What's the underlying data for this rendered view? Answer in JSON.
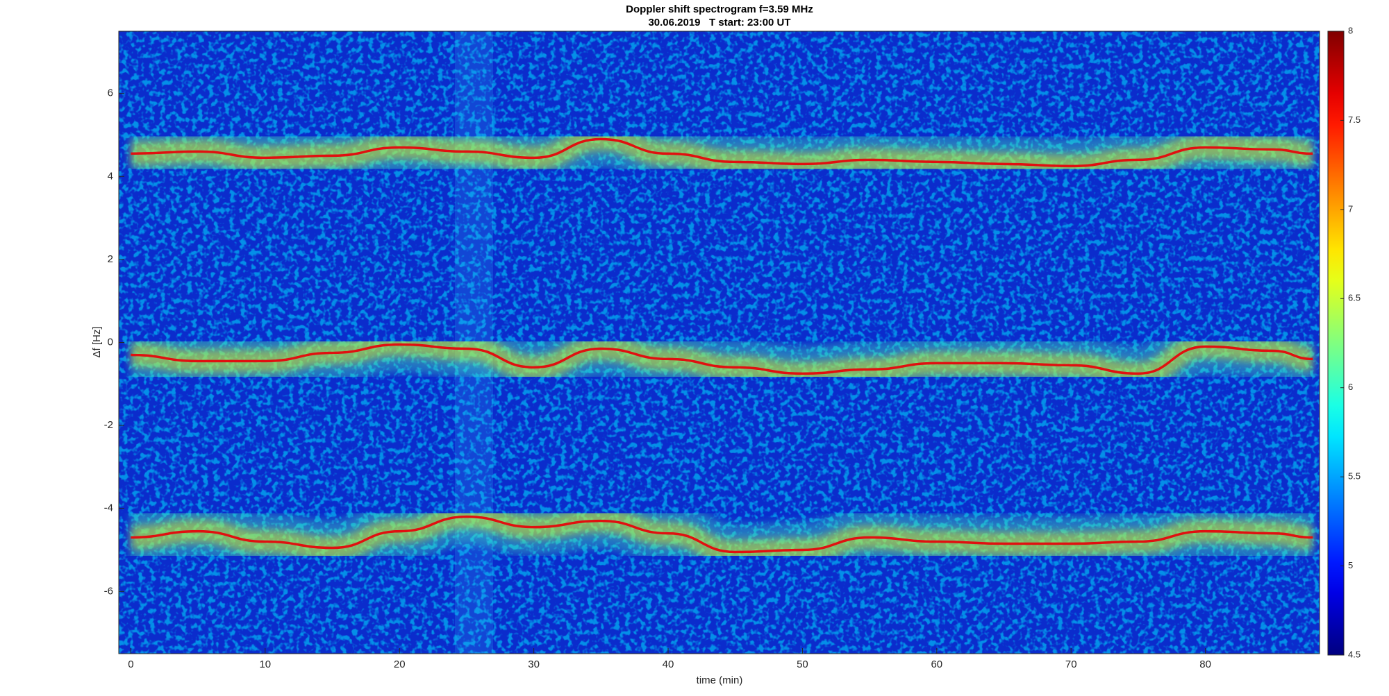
{
  "chart_data": {
    "type": "spectrogram",
    "title": "Doppler shift spectrogram f=3.59 MHz",
    "subtitle": "30.06.2019   T start: 23:00 UT",
    "x_label": "time (min)",
    "y_label": "Δf [Hz]",
    "colormap": "jet",
    "xlim": [
      -0.9,
      88.5
    ],
    "ylim": [
      -7.5,
      7.5
    ],
    "xticks": [
      0,
      10,
      20,
      30,
      40,
      50,
      60,
      70,
      80
    ],
    "yticks": [
      -6,
      -4,
      -2,
      0,
      2,
      4,
      6
    ],
    "colorbar": {
      "clim": [
        4.5,
        8
      ],
      "ticks": [
        4.5,
        5,
        5.5,
        6,
        6.5,
        7,
        7.5,
        8
      ]
    },
    "x": [
      0,
      5,
      10,
      15,
      20,
      25,
      30,
      35,
      40,
      45,
      50,
      55,
      60,
      65,
      70,
      75,
      80,
      85,
      88
    ],
    "series": [
      {
        "color": "#e01010",
        "values": [
          4.55,
          4.6,
          4.45,
          4.5,
          4.7,
          4.6,
          4.45,
          4.9,
          4.55,
          4.35,
          4.3,
          4.4,
          4.35,
          4.3,
          4.25,
          4.4,
          4.7,
          4.65,
          4.55
        ]
      },
      {
        "color": "#e01010",
        "values": [
          -0.3,
          -0.45,
          -0.45,
          -0.25,
          -0.05,
          -0.15,
          -0.6,
          -0.15,
          -0.4,
          -0.6,
          -0.75,
          -0.65,
          -0.5,
          -0.5,
          -0.55,
          -0.75,
          -0.1,
          -0.2,
          -0.4
        ]
      },
      {
        "color": "#e01010",
        "values": [
          -4.7,
          -4.55,
          -4.8,
          -4.95,
          -4.55,
          -4.2,
          -4.45,
          -4.3,
          -4.6,
          -5.05,
          -5.0,
          -4.7,
          -4.8,
          -4.85,
          -4.85,
          -4.8,
          -4.55,
          -4.6,
          -4.7
        ]
      }
    ]
  }
}
